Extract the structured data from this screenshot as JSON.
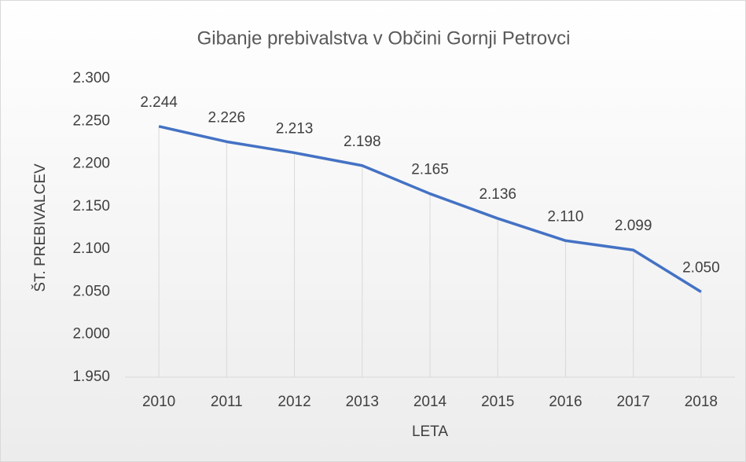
{
  "chart_data": {
    "type": "line",
    "title": "Gibanje prebivalstva v Občini Gornji Petrovci",
    "x_label": "LETA",
    "y_label": "ŠT. PREBIVALCEV",
    "categories": [
      "2010",
      "2011",
      "2012",
      "2013",
      "2014",
      "2015",
      "2016",
      "2017",
      "2018"
    ],
    "series": [
      {
        "name": "ŠT. PREBIVALCEV",
        "color": "#4472c4",
        "values": [
          2244,
          2226,
          2213,
          2198,
          2165,
          2136,
          2110,
          2099,
          2050
        ],
        "value_labels": [
          "2.244",
          "2.226",
          "2.213",
          "2.198",
          "2.165",
          "2.136",
          "2.110",
          "2.099",
          "2.050"
        ]
      }
    ],
    "ylim": [
      1950,
      2300
    ],
    "yticks": [
      {
        "value": 1950,
        "label": "1.950"
      },
      {
        "value": 2000,
        "label": "2.000"
      },
      {
        "value": 2050,
        "label": "2.050"
      },
      {
        "value": 2100,
        "label": "2.100"
      },
      {
        "value": 2150,
        "label": "2.150"
      },
      {
        "value": 2200,
        "label": "2.200"
      },
      {
        "value": 2250,
        "label": "2.250"
      },
      {
        "value": 2300,
        "label": "2.300"
      }
    ],
    "drop_lines": true,
    "grid": false
  }
}
